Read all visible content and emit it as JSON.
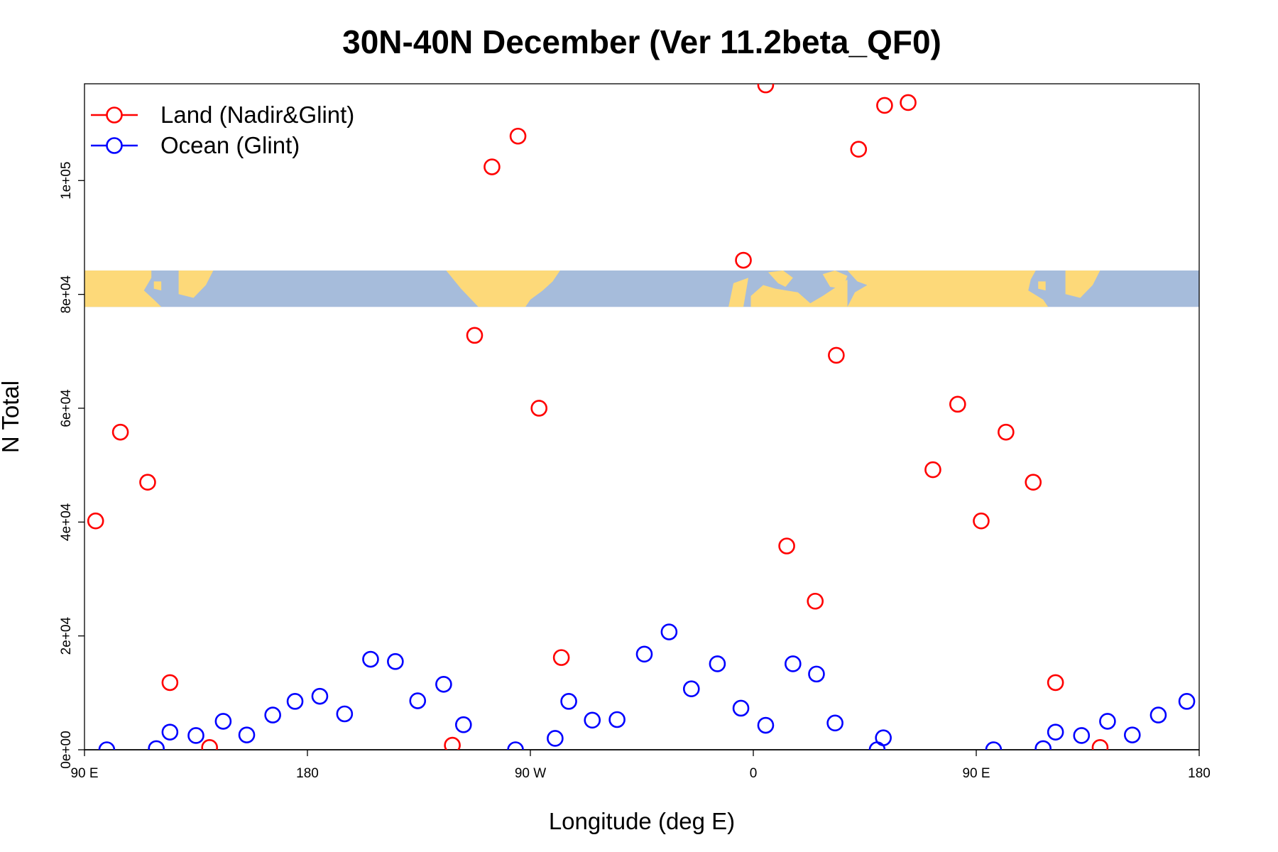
{
  "chart_data": {
    "type": "scatter",
    "title": "30N-40N December (Ver 11.2beta_QF0)",
    "xlabel": "Longitude (deg E)",
    "ylabel": "N Total",
    "xlim": [
      90,
      540
    ],
    "ylim": [
      0,
      117000
    ],
    "x_ticks": [
      {
        "value": 90,
        "label": "90 E"
      },
      {
        "value": 180,
        "label": "180"
      },
      {
        "value": 270,
        "label": "90 W"
      },
      {
        "value": 360,
        "label": "0"
      },
      {
        "value": 450,
        "label": "90 E"
      },
      {
        "value": 540,
        "label": "180"
      }
    ],
    "y_ticks": [
      {
        "value": 0,
        "label": "0e+00"
      },
      {
        "value": 20000,
        "label": "2e+04"
      },
      {
        "value": 40000,
        "label": "4e+04"
      },
      {
        "value": 60000,
        "label": "6e+04"
      },
      {
        "value": 80000,
        "label": "8e+04"
      },
      {
        "value": 100000,
        "label": "1e+05"
      }
    ],
    "map_strip": {
      "description": "world map strip 30N-40N",
      "y_range": [
        77800,
        84200
      ],
      "land_color": "#FDD979",
      "ocean_color": "#A6BCDB"
    },
    "legend": {
      "position": "top-left"
    },
    "series": [
      {
        "name": "Land (Nadir&Glint)",
        "color": "#FF0000",
        "points": [
          {
            "x": 94.5,
            "y": 40200
          },
          {
            "x": 104.5,
            "y": 55800
          },
          {
            "x": 115.5,
            "y": 47000
          },
          {
            "x": 124.5,
            "y": 11800
          },
          {
            "x": 140.5,
            "y": 400
          },
          {
            "x": 238.5,
            "y": 800
          },
          {
            "x": 247.5,
            "y": 72800
          },
          {
            "x": 254.5,
            "y": 102400
          },
          {
            "x": 265,
            "y": 107800
          },
          {
            "x": 273.5,
            "y": 60000
          },
          {
            "x": 282.5,
            "y": 16200
          },
          {
            "x": 356,
            "y": 86000
          },
          {
            "x": 365,
            "y": 116800
          },
          {
            "x": 373.5,
            "y": 35800
          },
          {
            "x": 385,
            "y": 26100
          },
          {
            "x": 393.5,
            "y": 69300
          },
          {
            "x": 402.5,
            "y": 105500
          },
          {
            "x": 413,
            "y": 113200
          },
          {
            "x": 422.5,
            "y": 113700
          },
          {
            "x": 432.5,
            "y": 49200
          },
          {
            "x": 442.5,
            "y": 60700
          },
          {
            "x": 452,
            "y": 40200
          },
          {
            "x": 462,
            "y": 55800
          },
          {
            "x": 473,
            "y": 47000
          },
          {
            "x": 482,
            "y": 11800
          },
          {
            "x": 500,
            "y": 400
          }
        ]
      },
      {
        "name": "Ocean (Glint)",
        "color": "#0000FF",
        "points": [
          {
            "x": 99,
            "y": 0
          },
          {
            "x": 119,
            "y": 200
          },
          {
            "x": 124.5,
            "y": 3100
          },
          {
            "x": 135,
            "y": 2500
          },
          {
            "x": 146,
            "y": 5000
          },
          {
            "x": 155.5,
            "y": 2600
          },
          {
            "x": 166,
            "y": 6100
          },
          {
            "x": 175,
            "y": 8500
          },
          {
            "x": 185,
            "y": 9400
          },
          {
            "x": 195,
            "y": 6300
          },
          {
            "x": 205.5,
            "y": 15900
          },
          {
            "x": 215.5,
            "y": 15500
          },
          {
            "x": 224.5,
            "y": 8600
          },
          {
            "x": 235,
            "y": 11500
          },
          {
            "x": 243,
            "y": 4400
          },
          {
            "x": 264,
            "y": 0
          },
          {
            "x": 280,
            "y": 2000
          },
          {
            "x": 285.5,
            "y": 8500
          },
          {
            "x": 295,
            "y": 5200
          },
          {
            "x": 305,
            "y": 5300
          },
          {
            "x": 316,
            "y": 16800
          },
          {
            "x": 326,
            "y": 20700
          },
          {
            "x": 335,
            "y": 10700
          },
          {
            "x": 345.5,
            "y": 15100
          },
          {
            "x": 355,
            "y": 7300
          },
          {
            "x": 365,
            "y": 4300
          },
          {
            "x": 376,
            "y": 15100
          },
          {
            "x": 385.5,
            "y": 13300
          },
          {
            "x": 393,
            "y": 4700
          },
          {
            "x": 410,
            "y": 0
          },
          {
            "x": 412.5,
            "y": 2100
          },
          {
            "x": 457,
            "y": 0
          },
          {
            "x": 477,
            "y": 200
          },
          {
            "x": 482,
            "y": 3100
          },
          {
            "x": 492.5,
            "y": 2500
          },
          {
            "x": 503,
            "y": 5000
          },
          {
            "x": 513,
            "y": 2600
          },
          {
            "x": 523.5,
            "y": 6100
          },
          {
            "x": 535,
            "y": 8500
          }
        ]
      }
    ]
  }
}
